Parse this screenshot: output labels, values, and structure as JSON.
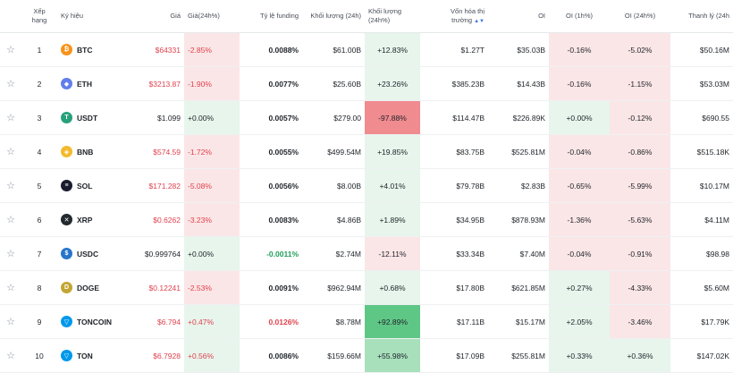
{
  "headers": {
    "rank": "Xếp hạng",
    "symbol": "Ký hiệu",
    "price": "Giá",
    "price_change": "Giá(24h%)",
    "funding": "Tỷ lệ funding",
    "volume": "Khối lượng (24h)",
    "volume_change": "Khối lượng (24h%)",
    "market_cap_1": "Vốn hóa thị",
    "market_cap_2": "trường",
    "oi": "OI",
    "oi_1h": "OI (1h%)",
    "oi_24h": "OI (24h%)",
    "liquidation": "Thanh lý (24h"
  },
  "rows": [
    {
      "rank": "1",
      "symbol": "BTC",
      "icon": "btc-icon",
      "icon_color": "#f7931a",
      "glyph": "₿",
      "price": "$64331",
      "price_change": "-2.85%",
      "funding": "0.0088%",
      "volume": "$61.00B",
      "volume_change": "+12.83%",
      "market_cap": "$1.27T",
      "oi": "$35.03B",
      "oi_1h": "-0.16%",
      "oi_24h": "-5.02%",
      "liquidation": "$50.16M"
    },
    {
      "rank": "2",
      "symbol": "ETH",
      "icon": "eth-icon",
      "icon_color": "#627eea",
      "glyph": "◆",
      "price": "$3213.87",
      "price_change": "-1.90%",
      "funding": "0.0077%",
      "volume": "$25.60B",
      "volume_change": "+23.26%",
      "market_cap": "$385.23B",
      "oi": "$14.43B",
      "oi_1h": "-0.16%",
      "oi_24h": "-1.15%",
      "liquidation": "$53.03M"
    },
    {
      "rank": "3",
      "symbol": "USDT",
      "icon": "usdt-icon",
      "icon_color": "#26a17b",
      "glyph": "T",
      "price": "$1.099",
      "price_change": "+0.00%",
      "funding": "0.0057%",
      "volume": "$279.00",
      "volume_change": "-97.88%",
      "market_cap": "$114.47B",
      "oi": "$226.89K",
      "oi_1h": "+0.00%",
      "oi_24h": "-0.12%",
      "liquidation": "$690.55"
    },
    {
      "rank": "4",
      "symbol": "BNB",
      "icon": "bnb-icon",
      "icon_color": "#f3ba2f",
      "glyph": "◈",
      "price": "$574.59",
      "price_change": "-1.72%",
      "funding": "0.0055%",
      "volume": "$499.54M",
      "volume_change": "+19.85%",
      "market_cap": "$83.75B",
      "oi": "$525.81M",
      "oi_1h": "-0.04%",
      "oi_24h": "-0.86%",
      "liquidation": "$515.18K"
    },
    {
      "rank": "5",
      "symbol": "SOL",
      "icon": "sol-icon",
      "icon_color": "#1b1b2f",
      "glyph": "≡",
      "price": "$171.282",
      "price_change": "-5.08%",
      "funding": "0.0056%",
      "volume": "$8.00B",
      "volume_change": "+4.01%",
      "market_cap": "$79.78B",
      "oi": "$2.83B",
      "oi_1h": "-0.65%",
      "oi_24h": "-5.99%",
      "liquidation": "$10.17M"
    },
    {
      "rank": "6",
      "symbol": "XRP",
      "icon": "xrp-icon",
      "icon_color": "#23292f",
      "glyph": "✕",
      "price": "$0.6262",
      "price_change": "-3.23%",
      "funding": "0.0083%",
      "volume": "$4.86B",
      "volume_change": "+1.89%",
      "market_cap": "$34.95B",
      "oi": "$878.93M",
      "oi_1h": "-1.36%",
      "oi_24h": "-5.63%",
      "liquidation": "$4.11M"
    },
    {
      "rank": "7",
      "symbol": "USDC",
      "icon": "usdc-icon",
      "icon_color": "#2775ca",
      "glyph": "$",
      "price": "$0.999764",
      "price_change": "+0.00%",
      "funding": "-0.0011%",
      "volume": "$2.74M",
      "volume_change": "-12.11%",
      "market_cap": "$33.34B",
      "oi": "$7.40M",
      "oi_1h": "-0.04%",
      "oi_24h": "-0.91%",
      "liquidation": "$98.98"
    },
    {
      "rank": "8",
      "symbol": "DOGE",
      "icon": "doge-icon",
      "icon_color": "#c2a633",
      "glyph": "D",
      "price": "$0.12241",
      "price_change": "-2.53%",
      "funding": "0.0091%",
      "volume": "$962.94M",
      "volume_change": "+0.68%",
      "market_cap": "$17.80B",
      "oi": "$621.85M",
      "oi_1h": "+0.27%",
      "oi_24h": "-4.33%",
      "liquidation": "$5.60M"
    },
    {
      "rank": "9",
      "symbol": "TONCOIN",
      "icon": "toncoin-icon",
      "icon_color": "#0098ea",
      "glyph": "▽",
      "price": "$6.794",
      "price_change": "+0.47%",
      "funding": "0.0126%",
      "volume": "$8.78M",
      "volume_change": "+92.89%",
      "market_cap": "$17.11B",
      "oi": "$15.17M",
      "oi_1h": "+2.05%",
      "oi_24h": "-3.46%",
      "liquidation": "$17.79K"
    },
    {
      "rank": "10",
      "symbol": "TON",
      "icon": "ton-icon",
      "icon_color": "#0098ea",
      "glyph": "▽",
      "price": "$6.7928",
      "price_change": "+0.56%",
      "funding": "0.0086%",
      "volume": "$159.66M",
      "volume_change": "+55.98%",
      "market_cap": "$17.09B",
      "oi": "$255.81M",
      "oi_1h": "+0.33%",
      "oi_24h": "+0.36%",
      "liquidation": "$147.02K"
    }
  ]
}
